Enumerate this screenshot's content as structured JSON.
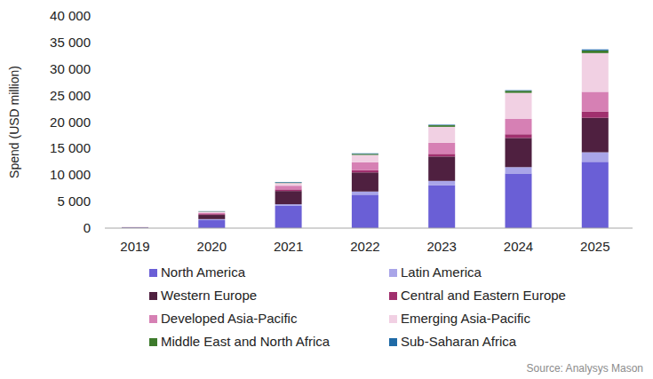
{
  "chart_data": {
    "type": "bar",
    "stacked": true,
    "grid": false,
    "legend": "bottom",
    "y_label": "Spend (USD million)",
    "annotations": [
      "Source: Analysys Mason"
    ],
    "categories": [
      "2019",
      "2020",
      "2021",
      "2022",
      "2023",
      "2024",
      "2025"
    ],
    "ylim": [
      0,
      40000
    ],
    "yticks": [
      0,
      {
        "value": 5000,
        "label": "5 000"
      },
      {
        "value": 10000,
        "label": "10 000"
      },
      {
        "value": 15000,
        "label": "15 000"
      },
      {
        "value": 20000,
        "label": "20 000"
      },
      {
        "value": 25000,
        "label": "25 000"
      },
      {
        "value": 30000,
        "label": "30 000"
      },
      {
        "value": 35000,
        "label": "35 000"
      },
      {
        "value": 40000,
        "label": "40 000"
      }
    ],
    "series": [
      {
        "name": "North America",
        "color": "#6a5fd6",
        "values": [
          100,
          1500,
          4200,
          6300,
          8100,
          10300,
          12500
        ]
      },
      {
        "name": "Latin America",
        "color": "#a9a5e8",
        "values": [
          10,
          200,
          300,
          600,
          800,
          1200,
          1800
        ]
      },
      {
        "name": "Western Europe",
        "color": "#4f2040",
        "values": [
          50,
          800,
          2500,
          3600,
          4600,
          5500,
          6500
        ]
      },
      {
        "name": "Central and Eastern Europe",
        "color": "#a0306e",
        "values": [
          5,
          150,
          300,
          400,
          500,
          700,
          1200
        ]
      },
      {
        "name": "Developed Asia-Pacific",
        "color": "#d680b4",
        "values": [
          20,
          250,
          700,
          1500,
          2100,
          2900,
          3700
        ]
      },
      {
        "name": "Emerging Asia-Pacific",
        "color": "#f1d0e3",
        "values": [
          10,
          200,
          500,
          1400,
          3000,
          4900,
          7300
        ]
      },
      {
        "name": "Middle East and North Africa",
        "color": "#3d7a2c",
        "values": [
          3,
          50,
          100,
          200,
          300,
          400,
          500
        ]
      },
      {
        "name": "Sub-Saharan Africa",
        "color": "#1f6aa6",
        "values": [
          2,
          50,
          100,
          100,
          100,
          100,
          200
        ]
      }
    ]
  }
}
